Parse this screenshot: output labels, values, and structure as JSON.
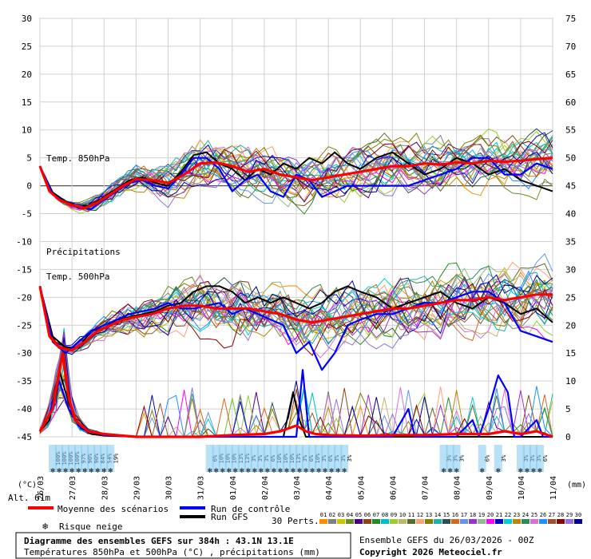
{
  "chart_data": {
    "type": "line",
    "title": "Diagramme des ensembles GEFS sur 384h : 43.1N 13.1E",
    "subtitle": "Températures 850hPa et 500hPa (°C) , précipitations (mm)",
    "run_info": "Ensemble GEFS du 26/03/2026 - 00Z",
    "copyright": "Copyright 2026 Meteociel.fr",
    "left_axis": {
      "label": "(°C)",
      "min": -45,
      "max": 30,
      "ticks": [
        30,
        25,
        20,
        15,
        10,
        5,
        0,
        -5,
        -10,
        -15,
        -20,
        -25,
        -30,
        -35,
        -40,
        -45
      ]
    },
    "right_axis": {
      "label": "(mm)",
      "min": 0,
      "max": 75,
      "ticks": [
        75,
        70,
        65,
        60,
        55,
        50,
        45,
        40,
        35,
        30,
        25,
        20,
        15,
        10,
        5,
        0
      ]
    },
    "x_dates": [
      "26/03",
      "27/03",
      "28/03",
      "29/03",
      "30/03",
      "31/03",
      "01/04",
      "02/04",
      "03/04",
      "04/04",
      "05/04",
      "06/04",
      "07/04",
      "08/04",
      "09/04",
      "10/04",
      "11/04"
    ],
    "altitude": "Alt. 61m",
    "labels": {
      "t850": "Temp. 850hPa",
      "precip": "Précipitations",
      "t500": "Temp. 500hPa"
    },
    "legend": {
      "mean": "Moyenne des scénarios",
      "control": "Run de contrôle",
      "gfs": "Run GFS",
      "snow": "Risque neige",
      "perts": "30 Perts."
    },
    "pert_numbers": [
      "01",
      "02",
      "03",
      "04",
      "05",
      "06",
      "07",
      "08",
      "09",
      "10",
      "11",
      "12",
      "13",
      "14",
      "15",
      "16",
      "17",
      "18",
      "19",
      "20",
      "21",
      "22",
      "23",
      "24",
      "25",
      "26",
      "27",
      "28",
      "29",
      "30"
    ],
    "colors": {
      "mean": "#ff0000",
      "control": "#0000ff",
      "gfs": "#000000",
      "snow": "#7ec8f0"
    },
    "pert_colors": [
      "#ff8c00",
      "#808080",
      "#c8c800",
      "#6b8e23",
      "#4b0082",
      "#8b4513",
      "#228b22",
      "#00bfbf",
      "#9acd32",
      "#bdb76b",
      "#556b2f",
      "#ffa07a",
      "#808000",
      "#20b2aa",
      "#2f4f4f",
      "#d2691e",
      "#6495ed",
      "#9932cc",
      "#8fbc8f",
      "#ff00ff",
      "#0000cd",
      "#00ced1",
      "#b8860b",
      "#2e8b57",
      "#da70d6",
      "#1e90ff",
      "#a0522d",
      "#8b0000",
      "#9370db",
      "#00008b"
    ],
    "snow_risk": [
      {
        "day": 0.4,
        "pct": "100%"
      },
      {
        "day": 0.6,
        "pct": "100%"
      },
      {
        "day": 0.8,
        "pct": "100%"
      },
      {
        "day": 1.0,
        "pct": "100%"
      },
      {
        "day": 1.2,
        "pct": "97%"
      },
      {
        "day": 1.4,
        "pct": "90%"
      },
      {
        "day": 1.6,
        "pct": "90%"
      },
      {
        "day": 1.8,
        "pct": "84%"
      },
      {
        "day": 2.0,
        "pct": "54%"
      },
      {
        "day": 2.2,
        "pct": "19%"
      },
      {
        "day": 5.3,
        "pct": "6%"
      },
      {
        "day": 5.5,
        "pct": "10%"
      },
      {
        "day": 5.7,
        "pct": "10%"
      },
      {
        "day": 5.9,
        "pct": "10%"
      },
      {
        "day": 6.1,
        "pct": "13%"
      },
      {
        "day": 6.3,
        "pct": "13%"
      },
      {
        "day": 6.5,
        "pct": "3%"
      },
      {
        "day": 6.7,
        "pct": "3%"
      },
      {
        "day": 6.9,
        "pct": "3%"
      },
      {
        "day": 7.1,
        "pct": "6%"
      },
      {
        "day": 7.3,
        "pct": "10%"
      },
      {
        "day": 7.5,
        "pct": "10%"
      },
      {
        "day": 7.7,
        "pct": "10%"
      },
      {
        "day": 7.9,
        "pct": "13%"
      },
      {
        "day": 8.1,
        "pct": "3%"
      },
      {
        "day": 8.3,
        "pct": "6%"
      },
      {
        "day": 8.5,
        "pct": "10%"
      },
      {
        "day": 8.7,
        "pct": "3%"
      },
      {
        "day": 8.9,
        "pct": "6%"
      },
      {
        "day": 9.1,
        "pct": "3%"
      },
      {
        "day": 9.3,
        "pct": "3%"
      },
      {
        "day": 9.5,
        "pct": "3%"
      },
      {
        "day": 12.6,
        "pct": "3%"
      },
      {
        "day": 12.8,
        "pct": "3%"
      },
      {
        "day": 13.0,
        "pct": "3%"
      },
      {
        "day": 13.8,
        "pct": "6%"
      },
      {
        "day": 14.3,
        "pct": "3%"
      },
      {
        "day": 15.0,
        "pct": "3%"
      },
      {
        "day": 15.2,
        "pct": "3%"
      },
      {
        "day": 15.4,
        "pct": "3%"
      },
      {
        "day": 15.6,
        "pct": "6%"
      }
    ],
    "t850_mean": [
      [
        0,
        3.5
      ],
      [
        0.3,
        -1
      ],
      [
        0.6,
        -2.5
      ],
      [
        1,
        -3.5
      ],
      [
        1.4,
        -4
      ],
      [
        1.8,
        -3
      ],
      [
        2.2,
        -1.5
      ],
      [
        2.6,
        0
      ],
      [
        3,
        1.2
      ],
      [
        3.5,
        1
      ],
      [
        4,
        0.5
      ],
      [
        4.5,
        2
      ],
      [
        5,
        4
      ],
      [
        5.5,
        4.2
      ],
      [
        6,
        3.5
      ],
      [
        6.5,
        2.5
      ],
      [
        7,
        3
      ],
      [
        7.5,
        2
      ],
      [
        8,
        1.5
      ],
      [
        8.5,
        1
      ],
      [
        9,
        1.5
      ],
      [
        9.5,
        2
      ],
      [
        10,
        2.5
      ],
      [
        10.5,
        3
      ],
      [
        11,
        3.5
      ],
      [
        11.5,
        3.5
      ],
      [
        12,
        4
      ],
      [
        12.5,
        3.8
      ],
      [
        13,
        4.2
      ],
      [
        13.5,
        4
      ],
      [
        14,
        4.5
      ],
      [
        14.5,
        4.3
      ],
      [
        15,
        4.5
      ],
      [
        15.5,
        4.8
      ],
      [
        16,
        5
      ]
    ],
    "t850_control": [
      [
        0,
        3.5
      ],
      [
        0.4,
        -1.5
      ],
      [
        0.8,
        -3
      ],
      [
        1.2,
        -4
      ],
      [
        1.6,
        -4.2
      ],
      [
        2,
        -2.5
      ],
      [
        2.4,
        -1
      ],
      [
        2.8,
        0.5
      ],
      [
        3.2,
        1
      ],
      [
        3.6,
        0
      ],
      [
        4,
        -0.5
      ],
      [
        4.4,
        2
      ],
      [
        4.8,
        5
      ],
      [
        5.2,
        5
      ],
      [
        5.6,
        3
      ],
      [
        6,
        -1
      ],
      [
        6.4,
        1
      ],
      [
        6.8,
        2
      ],
      [
        7.2,
        -1
      ],
      [
        7.6,
        -2
      ],
      [
        8,
        2
      ],
      [
        8.4,
        1
      ],
      [
        8.8,
        -2
      ],
      [
        9.2,
        -1
      ],
      [
        9.6,
        0
      ],
      [
        10,
        0
      ],
      [
        10.5,
        0
      ],
      [
        11,
        0
      ],
      [
        11.5,
        0
      ],
      [
        12,
        1
      ],
      [
        12.5,
        2
      ],
      [
        13,
        3
      ],
      [
        13.5,
        5
      ],
      [
        14,
        5
      ],
      [
        14.5,
        2
      ],
      [
        15,
        2
      ],
      [
        15.5,
        4
      ],
      [
        16,
        3
      ]
    ],
    "t850_gfs": [
      [
        0,
        3.5
      ],
      [
        0.4,
        -1.2
      ],
      [
        0.8,
        -2.8
      ],
      [
        1.2,
        -3.8
      ],
      [
        1.6,
        -3.5
      ],
      [
        2,
        -2
      ],
      [
        2.4,
        -0.5
      ],
      [
        2.8,
        1
      ],
      [
        3.2,
        1.5
      ],
      [
        3.6,
        0.5
      ],
      [
        4,
        0
      ],
      [
        4.4,
        2.5
      ],
      [
        4.8,
        5.5
      ],
      [
        5.2,
        6
      ],
      [
        5.6,
        4
      ],
      [
        6,
        3
      ],
      [
        6.4,
        1
      ],
      [
        6.8,
        3
      ],
      [
        7.2,
        2
      ],
      [
        7.6,
        4
      ],
      [
        8,
        3
      ],
      [
        8.4,
        5
      ],
      [
        8.8,
        4
      ],
      [
        9.2,
        6
      ],
      [
        9.6,
        4
      ],
      [
        10,
        3
      ],
      [
        10.5,
        5
      ],
      [
        11,
        6
      ],
      [
        11.5,
        4
      ],
      [
        12,
        2
      ],
      [
        12.5,
        3
      ],
      [
        13,
        5
      ],
      [
        13.5,
        4
      ],
      [
        14,
        2
      ],
      [
        14.5,
        3
      ],
      [
        15,
        1
      ],
      [
        15.5,
        0
      ],
      [
        16,
        -1
      ]
    ],
    "t500_mean": [
      [
        0,
        -18
      ],
      [
        0.3,
        -27
      ],
      [
        0.6,
        -29
      ],
      [
        1,
        -29.5
      ],
      [
        1.4,
        -28
      ],
      [
        1.8,
        -26
      ],
      [
        2.2,
        -25
      ],
      [
        2.6,
        -24
      ],
      [
        3,
        -23.5
      ],
      [
        3.5,
        -23
      ],
      [
        4,
        -22
      ],
      [
        4.5,
        -21.5
      ],
      [
        5,
        -21.5
      ],
      [
        5.5,
        -22
      ],
      [
        6,
        -22
      ],
      [
        6.5,
        -22
      ],
      [
        7,
        -22.5
      ],
      [
        7.5,
        -23
      ],
      [
        8,
        -24
      ],
      [
        8.5,
        -24.5
      ],
      [
        9,
        -24
      ],
      [
        9.5,
        -23.5
      ],
      [
        10,
        -23
      ],
      [
        10.5,
        -22.5
      ],
      [
        11,
        -22
      ],
      [
        11.5,
        -22
      ],
      [
        12,
        -21.5
      ],
      [
        12.5,
        -21
      ],
      [
        13,
        -20.5
      ],
      [
        13.5,
        -20.5
      ],
      [
        14,
        -20
      ],
      [
        14.5,
        -20.5
      ],
      [
        15,
        -20
      ],
      [
        15.5,
        -19.5
      ],
      [
        16,
        -19.5
      ]
    ],
    "t500_control": [
      [
        0,
        -18
      ],
      [
        0.4,
        -28
      ],
      [
        0.8,
        -30
      ],
      [
        1.2,
        -28
      ],
      [
        1.6,
        -26
      ],
      [
        2,
        -25
      ],
      [
        2.4,
        -24
      ],
      [
        2.8,
        -23
      ],
      [
        3.2,
        -22.5
      ],
      [
        3.6,
        -22
      ],
      [
        4,
        -21
      ],
      [
        4.4,
        -22
      ],
      [
        4.8,
        -22
      ],
      [
        5.2,
        -21.5
      ],
      [
        5.6,
        -21
      ],
      [
        6,
        -23
      ],
      [
        6.4,
        -22
      ],
      [
        6.8,
        -23
      ],
      [
        7.2,
        -24
      ],
      [
        7.6,
        -25
      ],
      [
        8,
        -30
      ],
      [
        8.4,
        -28
      ],
      [
        8.8,
        -33
      ],
      [
        9.2,
        -30
      ],
      [
        9.6,
        -25
      ],
      [
        10,
        -24
      ],
      [
        10.5,
        -23
      ],
      [
        11,
        -23
      ],
      [
        11.5,
        -22
      ],
      [
        12,
        -21
      ],
      [
        12.5,
        -21
      ],
      [
        13,
        -20
      ],
      [
        13.5,
        -19
      ],
      [
        14,
        -19
      ],
      [
        14.5,
        -21
      ],
      [
        15,
        -26
      ],
      [
        15.5,
        -27
      ],
      [
        16,
        -28
      ]
    ],
    "t500_gfs": [
      [
        0,
        -18
      ],
      [
        0.4,
        -27
      ],
      [
        0.8,
        -29
      ],
      [
        1.2,
        -29
      ],
      [
        1.6,
        -26
      ],
      [
        2,
        -25.5
      ],
      [
        2.4,
        -24
      ],
      [
        2.8,
        -23.5
      ],
      [
        3.2,
        -23
      ],
      [
        3.6,
        -22.5
      ],
      [
        4,
        -21.5
      ],
      [
        4.4,
        -21
      ],
      [
        4.8,
        -19
      ],
      [
        5.2,
        -18
      ],
      [
        5.6,
        -18
      ],
      [
        6,
        -19
      ],
      [
        6.4,
        -21
      ],
      [
        6.8,
        -20
      ],
      [
        7.2,
        -21
      ],
      [
        7.6,
        -20
      ],
      [
        8,
        -21
      ],
      [
        8.4,
        -22
      ],
      [
        8.8,
        -21
      ],
      [
        9.2,
        -19
      ],
      [
        9.6,
        -18
      ],
      [
        10,
        -19
      ],
      [
        10.5,
        -20
      ],
      [
        11,
        -22
      ],
      [
        11.5,
        -21
      ],
      [
        12,
        -20
      ],
      [
        12.5,
        -19
      ],
      [
        13,
        -21
      ],
      [
        13.5,
        -22
      ],
      [
        14,
        -20
      ],
      [
        14.5,
        -21
      ],
      [
        15,
        -23
      ],
      [
        15.5,
        -22
      ],
      [
        16,
        -24.5
      ]
    ],
    "precip_mean": [
      [
        0,
        1
      ],
      [
        0.4,
        5
      ],
      [
        0.7,
        15
      ],
      [
        0.9,
        7
      ],
      [
        1.1,
        3
      ],
      [
        1.5,
        1
      ],
      [
        2,
        0.5
      ],
      [
        2.6,
        0.2
      ],
      [
        3,
        0
      ],
      [
        4,
        0
      ],
      [
        5,
        0
      ],
      [
        6,
        0.3
      ],
      [
        7,
        0.5
      ],
      [
        7.5,
        1
      ],
      [
        8,
        2
      ],
      [
        8.3,
        1
      ],
      [
        8.6,
        0.5
      ],
      [
        9,
        0.3
      ],
      [
        10,
        0.2
      ],
      [
        11,
        0.3
      ],
      [
        12,
        0.3
      ],
      [
        13,
        0.5
      ],
      [
        14,
        0.5
      ],
      [
        14.5,
        1
      ],
      [
        15,
        0.5
      ],
      [
        15.5,
        1
      ],
      [
        16,
        0
      ]
    ],
    "precip_control": [
      [
        0,
        1
      ],
      [
        0.3,
        4
      ],
      [
        0.6,
        10
      ],
      [
        0.9,
        5
      ],
      [
        1.2,
        2
      ],
      [
        1.6,
        1
      ],
      [
        2,
        0.3
      ],
      [
        3,
        0
      ],
      [
        4,
        0
      ],
      [
        5,
        0
      ],
      [
        6,
        0
      ],
      [
        7,
        0
      ],
      [
        7.5,
        0
      ],
      [
        8,
        0
      ],
      [
        8.2,
        12
      ],
      [
        8.4,
        0
      ],
      [
        9,
        0
      ],
      [
        10,
        0
      ],
      [
        10.5,
        0
      ],
      [
        11,
        0
      ],
      [
        11.5,
        5
      ],
      [
        11.7,
        0
      ],
      [
        12,
        0
      ],
      [
        13,
        0
      ],
      [
        13.5,
        3
      ],
      [
        13.7,
        0
      ],
      [
        14,
        5
      ],
      [
        14.3,
        11
      ],
      [
        14.6,
        8
      ],
      [
        14.8,
        0
      ],
      [
        15,
        0
      ],
      [
        15.5,
        3
      ],
      [
        15.7,
        0
      ],
      [
        16,
        0
      ]
    ],
    "precip_gfs": [
      [
        0,
        1
      ],
      [
        0.3,
        3
      ],
      [
        0.6,
        12
      ],
      [
        0.9,
        6
      ],
      [
        1.2,
        2
      ],
      [
        1.6,
        0.5
      ],
      [
        2,
        0.2
      ],
      [
        3,
        0
      ],
      [
        4,
        0
      ],
      [
        5,
        0
      ],
      [
        6,
        0
      ],
      [
        7,
        0
      ],
      [
        7.6,
        0
      ],
      [
        7.9,
        8
      ],
      [
        8.1,
        3
      ],
      [
        8.3,
        0
      ],
      [
        9,
        0
      ],
      [
        10,
        0
      ],
      [
        11,
        0
      ],
      [
        12,
        0
      ],
      [
        13,
        0
      ],
      [
        14,
        0
      ],
      [
        15,
        0
      ],
      [
        16,
        0
      ]
    ]
  }
}
